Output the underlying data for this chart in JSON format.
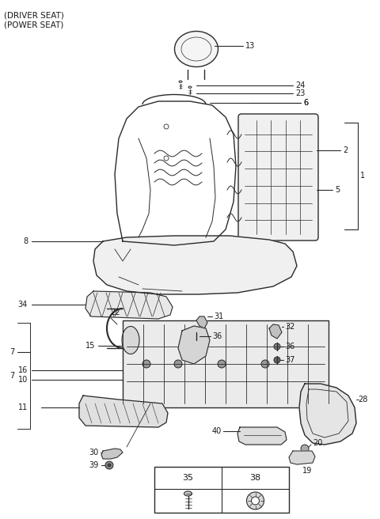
{
  "bg_color": "#ffffff",
  "line_color": "#2a2a2a",
  "label_color": "#1a1a1a",
  "fs": 7,
  "fs_title": 7.5,
  "title1": "(DRIVER SEAT)",
  "title2": "(POWER SEAT)",
  "fig_w": 4.8,
  "fig_h": 6.56,
  "dpi": 100
}
